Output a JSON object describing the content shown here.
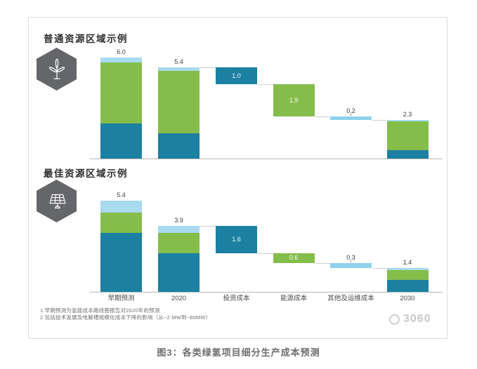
{
  "figure": {
    "caption": "图3：各类绿氢项目细分生产成本预测",
    "watermark": "3060",
    "footnotes": [
      "1.早期预测为氢能成本路线图报告对2020年的预测",
      "2.包括技术发展及电解槽规模化成本下降的影响（从~2 MW到~80MW）"
    ]
  },
  "colors": {
    "investment": "#1b80a1",
    "energy": "#85bd4b",
    "other_cap": "#a8daf0",
    "other_strip": "#8ed2ed",
    "axis": "#b3b6ba",
    "connector": "#cfcfcf",
    "tick": "#8a8a8a",
    "hexagon": "#64666a",
    "label_dark": "#3c3c3c",
    "label_light": "#f4fbff",
    "panel_border": "#d9dce0",
    "caption_text": "#6e6e6e",
    "watermark_text": "#c9c9c9"
  },
  "chart_data": [
    {
      "type": "bar",
      "subtype": "waterfall-stacked",
      "title": "普通资源区域示例",
      "icon": "wind-turbine",
      "categories": [
        "早期预测",
        "2020",
        "投资成本",
        "能源成本",
        "其他及运维成本",
        "2030"
      ],
      "legend": [
        "投资成本(深蓝)",
        "能源成本(绿)",
        "其他及运维成本(浅蓝)"
      ],
      "ylim": [
        0,
        6.5
      ],
      "grid": false,
      "columns": [
        {
          "kind": "stack",
          "label": "6.0",
          "total": 6.0,
          "segments": [
            {
              "part": "investment",
              "value": 2.1
            },
            {
              "part": "energy",
              "value": 3.6
            },
            {
              "part": "other",
              "value": 0.3
            }
          ]
        },
        {
          "kind": "stack",
          "label": "5.4",
          "total": 5.4,
          "segments": [
            {
              "part": "investment",
              "value": 1.5
            },
            {
              "part": "energy",
              "value": 3.7
            },
            {
              "part": "other",
              "value": 0.2
            }
          ]
        },
        {
          "kind": "drop",
          "label": "1.0",
          "value": 1.0,
          "part": "investment",
          "from": 5.4,
          "to": 4.4,
          "label_pos": "inside"
        },
        {
          "kind": "drop",
          "label": "1.9",
          "value": 1.9,
          "part": "energy",
          "from": 4.4,
          "to": 2.5,
          "label_pos": "inside"
        },
        {
          "kind": "drop",
          "label": "0.2",
          "value": 0.2,
          "part": "other",
          "from": 2.5,
          "to": 2.3,
          "label_pos": "above"
        },
        {
          "kind": "stack",
          "label": "2.3",
          "total": 2.3,
          "segments": [
            {
              "part": "investment",
              "value": 0.5
            },
            {
              "part": "energy",
              "value": 1.7
            },
            {
              "part": "other",
              "value": 0.1
            }
          ]
        }
      ]
    },
    {
      "type": "bar",
      "subtype": "waterfall-stacked",
      "title": "最佳资源区域示例",
      "icon": "solar-panel",
      "categories": [
        "早期预测",
        "2020",
        "投资成本",
        "能源成本",
        "其他及运维成本",
        "2030"
      ],
      "legend": [
        "投资成本(深蓝)",
        "能源成本(绿)",
        "其他及运维成本(浅蓝)"
      ],
      "ylim": [
        0,
        6.5
      ],
      "grid": false,
      "columns": [
        {
          "kind": "stack",
          "label": "5.4",
          "total": 5.4,
          "segments": [
            {
              "part": "investment",
              "value": 3.5
            },
            {
              "part": "energy",
              "value": 1.2
            },
            {
              "part": "other",
              "value": 0.7
            }
          ]
        },
        {
          "kind": "stack",
          "label": "3.9",
          "total": 3.9,
          "segments": [
            {
              "part": "investment",
              "value": 2.3
            },
            {
              "part": "energy",
              "value": 1.2
            },
            {
              "part": "other",
              "value": 0.4
            }
          ]
        },
        {
          "kind": "drop",
          "label": "1.6",
          "value": 1.6,
          "part": "investment",
          "from": 3.9,
          "to": 2.3,
          "label_pos": "inside"
        },
        {
          "kind": "drop",
          "label": "0.6",
          "value": 0.6,
          "part": "energy",
          "from": 2.3,
          "to": 1.7,
          "label_pos": "inside"
        },
        {
          "kind": "drop",
          "label": "0.3",
          "value": 0.3,
          "part": "other",
          "from": 1.7,
          "to": 1.4,
          "label_pos": "above"
        },
        {
          "kind": "stack",
          "label": "1.4",
          "total": 1.4,
          "segments": [
            {
              "part": "investment",
              "value": 0.7
            },
            {
              "part": "energy",
              "value": 0.6
            },
            {
              "part": "other",
              "value": 0.1
            }
          ]
        }
      ]
    }
  ]
}
